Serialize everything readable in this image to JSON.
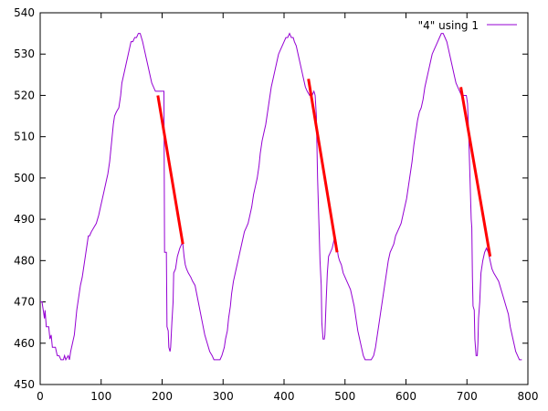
{
  "chart_data": {
    "type": "line",
    "title": "",
    "xlabel": "",
    "ylabel": "",
    "xlim": [
      0,
      800
    ],
    "ylim": [
      450,
      540
    ],
    "x_ticks": [
      "0",
      "100",
      "200",
      "300",
      "400",
      "500",
      "600",
      "700",
      "800"
    ],
    "y_ticks": [
      "450",
      "460",
      "470",
      "480",
      "490",
      "500",
      "510",
      "520",
      "530",
      "540"
    ],
    "grid": false,
    "legend_position": "top-right",
    "series": [
      {
        "name": "\"4\" using 1",
        "color": "#9400d3",
        "style": "line",
        "points": [
          [
            0,
            470
          ],
          [
            3,
            470
          ],
          [
            5,
            468
          ],
          [
            7,
            466
          ],
          [
            8,
            468
          ],
          [
            10,
            464
          ],
          [
            14,
            464
          ],
          [
            16,
            461
          ],
          [
            18,
            462
          ],
          [
            20,
            459
          ],
          [
            25,
            459
          ],
          [
            28,
            457
          ],
          [
            31,
            457
          ],
          [
            34,
            456
          ],
          [
            38,
            456
          ],
          [
            40,
            457
          ],
          [
            42,
            456
          ],
          [
            46,
            457
          ],
          [
            48,
            456
          ],
          [
            50,
            458
          ],
          [
            53,
            460
          ],
          [
            56,
            462
          ],
          [
            58,
            465
          ],
          [
            60,
            468
          ],
          [
            63,
            471
          ],
          [
            66,
            474
          ],
          [
            69,
            476
          ],
          [
            71,
            478
          ],
          [
            73,
            480
          ],
          [
            75,
            482
          ],
          [
            77,
            484
          ],
          [
            79,
            486
          ],
          [
            81,
            486
          ],
          [
            84,
            487
          ],
          [
            88,
            488
          ],
          [
            92,
            489
          ],
          [
            96,
            491
          ],
          [
            99,
            493
          ],
          [
            102,
            495
          ],
          [
            105,
            497
          ],
          [
            108,
            499
          ],
          [
            111,
            501
          ],
          [
            114,
            504
          ],
          [
            116,
            507
          ],
          [
            118,
            510
          ],
          [
            120,
            513
          ],
          [
            122,
            515
          ],
          [
            125,
            516
          ],
          [
            129,
            517
          ],
          [
            132,
            520
          ],
          [
            134,
            523
          ],
          [
            137,
            525
          ],
          [
            140,
            527
          ],
          [
            143,
            529
          ],
          [
            146,
            531
          ],
          [
            149,
            533
          ],
          [
            152,
            533
          ],
          [
            155,
            534
          ],
          [
            158,
            534
          ],
          [
            161,
            535
          ],
          [
            164,
            535
          ],
          [
            166,
            534
          ],
          [
            168,
            533
          ],
          [
            171,
            531
          ],
          [
            174,
            529
          ],
          [
            177,
            527
          ],
          [
            180,
            525
          ],
          [
            183,
            523
          ],
          [
            186,
            522
          ],
          [
            189,
            521
          ],
          [
            192,
            521
          ],
          [
            197,
            521
          ],
          [
            201,
            521
          ],
          [
            203,
            521
          ],
          [
            204,
            482
          ],
          [
            207,
            482
          ],
          [
            208,
            464
          ],
          [
            210,
            463
          ],
          [
            211,
            459
          ],
          [
            213,
            458
          ],
          [
            214,
            459
          ],
          [
            216,
            465
          ],
          [
            218,
            470
          ],
          [
            219,
            477
          ],
          [
            222,
            478
          ],
          [
            225,
            481
          ],
          [
            229,
            483
          ],
          [
            232,
            484
          ],
          [
            234,
            484
          ],
          [
            236,
            481
          ],
          [
            238,
            479
          ],
          [
            240,
            478
          ],
          [
            243,
            477
          ],
          [
            247,
            476
          ],
          [
            250,
            475
          ],
          [
            254,
            474
          ],
          [
            258,
            471
          ],
          [
            262,
            468
          ],
          [
            266,
            465
          ],
          [
            270,
            462
          ],
          [
            274,
            460
          ],
          [
            278,
            458
          ],
          [
            282,
            457
          ],
          [
            285,
            456
          ],
          [
            290,
            456
          ],
          [
            295,
            456
          ],
          [
            298,
            457
          ],
          [
            302,
            459
          ],
          [
            304,
            461
          ],
          [
            307,
            463
          ],
          [
            309,
            466
          ],
          [
            312,
            469
          ],
          [
            314,
            472
          ],
          [
            317,
            475
          ],
          [
            320,
            477
          ],
          [
            323,
            479
          ],
          [
            326,
            481
          ],
          [
            329,
            483
          ],
          [
            332,
            485
          ],
          [
            335,
            487
          ],
          [
            338,
            488
          ],
          [
            341,
            489
          ],
          [
            344,
            491
          ],
          [
            347,
            493
          ],
          [
            350,
            496
          ],
          [
            353,
            498
          ],
          [
            356,
            500
          ],
          [
            359,
            503
          ],
          [
            361,
            506
          ],
          [
            364,
            509
          ],
          [
            367,
            511
          ],
          [
            370,
            513
          ],
          [
            373,
            516
          ],
          [
            376,
            519
          ],
          [
            379,
            522
          ],
          [
            382,
            524
          ],
          [
            385,
            526
          ],
          [
            388,
            528
          ],
          [
            391,
            530
          ],
          [
            394,
            531
          ],
          [
            397,
            532
          ],
          [
            400,
            533
          ],
          [
            403,
            534
          ],
          [
            406,
            534
          ],
          [
            409,
            535
          ],
          [
            412,
            534
          ],
          [
            415,
            534
          ],
          [
            417,
            533
          ],
          [
            420,
            532
          ],
          [
            423,
            530
          ],
          [
            426,
            528
          ],
          [
            429,
            526
          ],
          [
            432,
            524
          ],
          [
            435,
            522
          ],
          [
            438,
            521
          ],
          [
            442,
            520
          ],
          [
            446,
            520
          ],
          [
            449,
            521
          ],
          [
            451,
            520
          ],
          [
            453,
            515
          ],
          [
            455,
            500
          ],
          [
            457,
            490
          ],
          [
            459,
            480
          ],
          [
            461,
            474
          ],
          [
            462,
            465
          ],
          [
            464,
            461
          ],
          [
            466,
            461
          ],
          [
            467,
            462
          ],
          [
            469,
            470
          ],
          [
            471,
            477
          ],
          [
            473,
            481
          ],
          [
            476,
            482
          ],
          [
            479,
            483
          ],
          [
            482,
            485
          ],
          [
            485,
            485
          ],
          [
            487,
            483
          ],
          [
            489,
            481
          ],
          [
            491,
            480
          ],
          [
            494,
            479
          ],
          [
            497,
            477
          ],
          [
            500,
            476
          ],
          [
            503,
            475
          ],
          [
            506,
            474
          ],
          [
            509,
            473
          ],
          [
            512,
            471
          ],
          [
            515,
            469
          ],
          [
            518,
            466
          ],
          [
            521,
            463
          ],
          [
            524,
            461
          ],
          [
            527,
            459
          ],
          [
            530,
            457
          ],
          [
            533,
            456
          ],
          [
            538,
            456
          ],
          [
            543,
            456
          ],
          [
            547,
            457
          ],
          [
            550,
            459
          ],
          [
            553,
            462
          ],
          [
            556,
            465
          ],
          [
            559,
            468
          ],
          [
            562,
            471
          ],
          [
            565,
            474
          ],
          [
            568,
            477
          ],
          [
            571,
            480
          ],
          [
            574,
            482
          ],
          [
            577,
            483
          ],
          [
            580,
            484
          ],
          [
            583,
            486
          ],
          [
            586,
            487
          ],
          [
            589,
            488
          ],
          [
            592,
            489
          ],
          [
            595,
            491
          ],
          [
            598,
            493
          ],
          [
            601,
            495
          ],
          [
            604,
            498
          ],
          [
            607,
            501
          ],
          [
            610,
            504
          ],
          [
            613,
            508
          ],
          [
            616,
            511
          ],
          [
            619,
            514
          ],
          [
            622,
            516
          ],
          [
            625,
            517
          ],
          [
            628,
            519
          ],
          [
            631,
            522
          ],
          [
            634,
            524
          ],
          [
            637,
            526
          ],
          [
            640,
            528
          ],
          [
            643,
            530
          ],
          [
            646,
            531
          ],
          [
            649,
            532
          ],
          [
            652,
            533
          ],
          [
            655,
            534
          ],
          [
            658,
            535
          ],
          [
            661,
            535
          ],
          [
            664,
            534
          ],
          [
            667,
            533
          ],
          [
            670,
            531
          ],
          [
            673,
            529
          ],
          [
            676,
            527
          ],
          [
            679,
            525
          ],
          [
            682,
            523
          ],
          [
            685,
            522
          ],
          [
            688,
            521
          ],
          [
            691,
            520
          ],
          [
            694,
            520
          ],
          [
            697,
            520
          ],
          [
            699,
            520
          ],
          [
            701,
            518
          ],
          [
            703,
            510
          ],
          [
            705,
            500
          ],
          [
            707,
            490
          ],
          [
            708,
            488
          ],
          [
            709,
            476
          ],
          [
            710,
            469
          ],
          [
            712,
            468
          ],
          [
            713,
            461
          ],
          [
            714,
            459
          ],
          [
            715,
            457
          ],
          [
            717,
            457
          ],
          [
            718,
            460
          ],
          [
            719,
            466
          ],
          [
            721,
            470
          ],
          [
            723,
            477
          ],
          [
            726,
            480
          ],
          [
            729,
            482
          ],
          [
            732,
            483
          ],
          [
            735,
            482
          ],
          [
            738,
            480
          ],
          [
            741,
            478
          ],
          [
            744,
            477
          ],
          [
            748,
            476
          ],
          [
            752,
            475
          ],
          [
            756,
            473
          ],
          [
            760,
            471
          ],
          [
            764,
            469
          ],
          [
            768,
            467
          ],
          [
            771,
            464
          ],
          [
            774,
            462
          ],
          [
            777,
            460
          ],
          [
            780,
            458
          ],
          [
            783,
            457
          ],
          [
            786,
            456
          ],
          [
            790,
            456
          ]
        ]
      },
      {
        "name": "",
        "color": "#ff0000",
        "style": "segments",
        "segments": [
          [
            [
              193,
              520
            ],
            [
              234,
              484
            ]
          ],
          [
            [
              440,
              524
            ],
            [
              487,
              482
            ]
          ],
          [
            [
              690,
              522
            ],
            [
              738,
              481
            ]
          ]
        ]
      }
    ]
  }
}
